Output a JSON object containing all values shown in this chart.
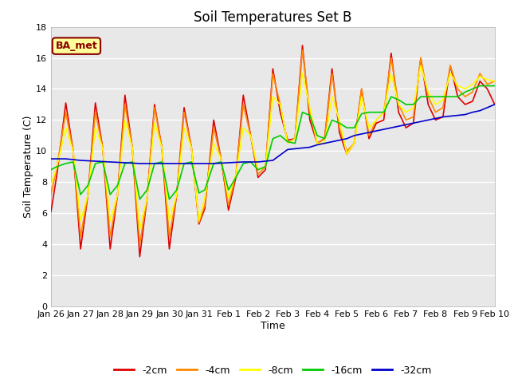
{
  "title": "Soil Temperatures Set B",
  "xlabel": "Time",
  "ylabel": "Soil Temperature (C)",
  "annotation": "BA_met",
  "ylim": [
    0,
    18
  ],
  "xlim": [
    0,
    15
  ],
  "tick_labels": [
    "Jan 26",
    "Jan 27",
    "Jan 28",
    "Jan 29",
    "Jan 30",
    "Jan 31",
    "Feb 1",
    "Feb 2",
    "Feb 3",
    "Feb 4",
    "Feb 5",
    "Feb 6",
    "Feb 7",
    "Feb 8",
    "Feb 9",
    "Feb 10"
  ],
  "series": {
    "-2cm": {
      "color": "#dd0000",
      "x": [
        0,
        0.2,
        0.5,
        0.75,
        1.0,
        1.25,
        1.5,
        1.75,
        2.0,
        2.25,
        2.5,
        2.75,
        3.0,
        3.25,
        3.5,
        3.75,
        4.0,
        4.25,
        4.5,
        4.75,
        5.0,
        5.2,
        5.5,
        5.75,
        6.0,
        6.25,
        6.5,
        6.75,
        7.0,
        7.25,
        7.5,
        7.75,
        8.0,
        8.25,
        8.5,
        8.75,
        9.0,
        9.25,
        9.5,
        9.75,
        10.0,
        10.25,
        10.5,
        10.75,
        11.0,
        11.25,
        11.5,
        11.75,
        12.0,
        12.25,
        12.5,
        12.75,
        13.0,
        13.25,
        13.5,
        13.75,
        14.0,
        14.25,
        14.5,
        14.75,
        15.0
      ],
      "y": [
        6.1,
        8.5,
        13.1,
        10.0,
        3.7,
        7.2,
        13.1,
        10.2,
        3.7,
        7.2,
        13.6,
        10.2,
        3.2,
        7.0,
        13.0,
        10.2,
        3.7,
        7.2,
        12.8,
        10.2,
        5.3,
        6.3,
        12.0,
        9.5,
        6.2,
        8.3,
        13.6,
        11.0,
        8.3,
        8.8,
        15.3,
        12.5,
        10.7,
        10.8,
        16.8,
        12.0,
        10.5,
        10.8,
        15.3,
        11.2,
        9.8,
        10.5,
        14.0,
        10.8,
        11.8,
        12.0,
        16.3,
        12.5,
        11.5,
        11.8,
        16.0,
        13.0,
        12.0,
        12.2,
        15.5,
        13.5,
        13.0,
        13.2,
        14.5,
        14.0,
        13.0
      ]
    },
    "-4cm": {
      "color": "#ff8800",
      "x": [
        0,
        0.2,
        0.5,
        0.75,
        1.0,
        1.25,
        1.5,
        1.75,
        2.0,
        2.25,
        2.5,
        2.75,
        3.0,
        3.25,
        3.5,
        3.75,
        4.0,
        4.25,
        4.5,
        4.75,
        5.0,
        5.2,
        5.5,
        5.75,
        6.0,
        6.25,
        6.5,
        6.75,
        7.0,
        7.25,
        7.5,
        7.75,
        8.0,
        8.25,
        8.5,
        8.75,
        9.0,
        9.25,
        9.5,
        9.75,
        10.0,
        10.25,
        10.5,
        10.75,
        11.0,
        11.25,
        11.5,
        11.75,
        12.0,
        12.25,
        12.5,
        12.75,
        13.0,
        13.25,
        13.5,
        13.75,
        14.0,
        14.25,
        14.5,
        14.75,
        15.0
      ],
      "y": [
        7.2,
        9.0,
        12.5,
        10.0,
        4.5,
        7.2,
        12.5,
        10.2,
        4.5,
        7.2,
        13.0,
        10.2,
        4.0,
        7.0,
        12.8,
        10.2,
        4.5,
        7.2,
        12.5,
        10.2,
        5.4,
        6.5,
        11.5,
        9.5,
        6.5,
        8.5,
        13.0,
        11.0,
        8.5,
        9.0,
        15.0,
        13.0,
        10.5,
        10.8,
        16.5,
        12.5,
        10.5,
        10.8,
        15.0,
        11.5,
        10.0,
        10.5,
        14.0,
        11.0,
        12.0,
        12.5,
        16.0,
        13.0,
        12.0,
        12.2,
        16.0,
        13.5,
        12.5,
        12.8,
        15.5,
        14.0,
        13.5,
        13.8,
        15.0,
        14.3,
        14.5
      ]
    },
    "-8cm": {
      "color": "#ffff00",
      "x": [
        0,
        0.2,
        0.5,
        0.75,
        1.0,
        1.25,
        1.5,
        1.75,
        2.0,
        2.25,
        2.5,
        2.75,
        3.0,
        3.25,
        3.5,
        3.75,
        4.0,
        4.25,
        4.5,
        4.75,
        5.0,
        5.2,
        5.5,
        5.75,
        6.0,
        6.25,
        6.5,
        6.75,
        7.0,
        7.25,
        7.5,
        7.75,
        8.0,
        8.25,
        8.5,
        8.75,
        9.0,
        9.25,
        9.5,
        9.75,
        10.0,
        10.25,
        10.5,
        10.75,
        11.0,
        11.25,
        11.5,
        11.75,
        12.0,
        12.25,
        12.5,
        12.75,
        13.0,
        13.25,
        13.5,
        13.75,
        14.0,
        14.25,
        14.5,
        14.75,
        15.0
      ],
      "y": [
        7.8,
        9.0,
        11.5,
        10.0,
        5.5,
        7.2,
        11.5,
        10.2,
        5.5,
        7.2,
        12.0,
        10.2,
        5.0,
        7.0,
        11.8,
        10.2,
        5.5,
        7.2,
        11.5,
        10.2,
        5.5,
        7.0,
        10.5,
        9.5,
        7.0,
        8.5,
        11.5,
        11.0,
        8.8,
        9.0,
        13.5,
        13.0,
        10.5,
        10.8,
        15.0,
        12.8,
        10.5,
        10.5,
        13.5,
        12.0,
        9.8,
        10.5,
        13.5,
        11.5,
        12.0,
        12.5,
        15.0,
        13.0,
        12.5,
        12.8,
        15.5,
        13.8,
        13.0,
        13.3,
        15.0,
        14.2,
        14.0,
        14.3,
        14.8,
        14.6,
        14.5
      ]
    },
    "-16cm": {
      "color": "#00cc00",
      "x": [
        0,
        0.2,
        0.5,
        0.75,
        1.0,
        1.25,
        1.5,
        1.75,
        2.0,
        2.25,
        2.5,
        2.75,
        3.0,
        3.25,
        3.5,
        3.75,
        4.0,
        4.25,
        4.5,
        4.75,
        5.0,
        5.2,
        5.5,
        5.75,
        6.0,
        6.25,
        6.5,
        6.75,
        7.0,
        7.25,
        7.5,
        7.75,
        8.0,
        8.25,
        8.5,
        8.75,
        9.0,
        9.25,
        9.5,
        9.75,
        10.0,
        10.25,
        10.5,
        10.75,
        11.0,
        11.25,
        11.5,
        11.75,
        12.0,
        12.25,
        12.5,
        12.75,
        13.0,
        13.25,
        13.5,
        13.75,
        14.0,
        14.25,
        14.5,
        14.75,
        15.0
      ],
      "y": [
        8.8,
        9.0,
        9.2,
        9.3,
        7.2,
        7.8,
        9.2,
        9.3,
        7.2,
        7.8,
        9.2,
        9.3,
        6.9,
        7.5,
        9.2,
        9.3,
        6.9,
        7.5,
        9.2,
        9.3,
        7.3,
        7.5,
        9.2,
        9.3,
        7.5,
        8.3,
        9.2,
        9.3,
        8.8,
        9.0,
        10.8,
        11.0,
        10.6,
        10.5,
        12.5,
        12.3,
        11.0,
        10.8,
        12.0,
        11.8,
        11.5,
        11.5,
        12.4,
        12.5,
        12.5,
        12.5,
        13.5,
        13.3,
        13.0,
        13.0,
        13.5,
        13.5,
        13.5,
        13.5,
        13.5,
        13.5,
        13.8,
        14.0,
        14.2,
        14.2,
        14.2
      ]
    },
    "-32cm": {
      "color": "#0000cc",
      "x": [
        0,
        0.5,
        1.0,
        1.5,
        2.0,
        2.5,
        3.0,
        3.5,
        4.0,
        4.5,
        5.0,
        5.5,
        6.0,
        6.5,
        7.0,
        7.5,
        8.0,
        8.25,
        8.5,
        8.75,
        9.0,
        9.25,
        9.5,
        9.75,
        10.0,
        10.25,
        10.5,
        10.75,
        11.0,
        11.25,
        11.5,
        11.75,
        12.0,
        12.25,
        12.5,
        12.75,
        13.0,
        13.25,
        13.5,
        13.75,
        14.0,
        14.25,
        14.5,
        14.75,
        15.0
      ],
      "y": [
        9.5,
        9.5,
        9.4,
        9.35,
        9.3,
        9.25,
        9.2,
        9.2,
        9.2,
        9.2,
        9.2,
        9.2,
        9.25,
        9.3,
        9.3,
        9.4,
        10.1,
        10.15,
        10.2,
        10.25,
        10.4,
        10.5,
        10.6,
        10.7,
        10.8,
        11.0,
        11.1,
        11.2,
        11.3,
        11.4,
        11.5,
        11.6,
        11.7,
        11.8,
        11.9,
        12.0,
        12.1,
        12.2,
        12.25,
        12.3,
        12.35,
        12.5,
        12.6,
        12.8,
        13.0
      ]
    }
  },
  "legend_entries": [
    "-2cm",
    "-4cm",
    "-8cm",
    "-16cm",
    "-32cm"
  ],
  "legend_colors": [
    "#dd0000",
    "#ff8800",
    "#ffff00",
    "#00cc00",
    "#0000cc"
  ],
  "plot_bg_color": "#e8e8e8",
  "fig_bg_color": "#ffffff",
  "grid_color": "#ffffff",
  "title_fontsize": 12,
  "axis_label_fontsize": 9,
  "tick_fontsize": 8,
  "legend_fontsize": 9
}
